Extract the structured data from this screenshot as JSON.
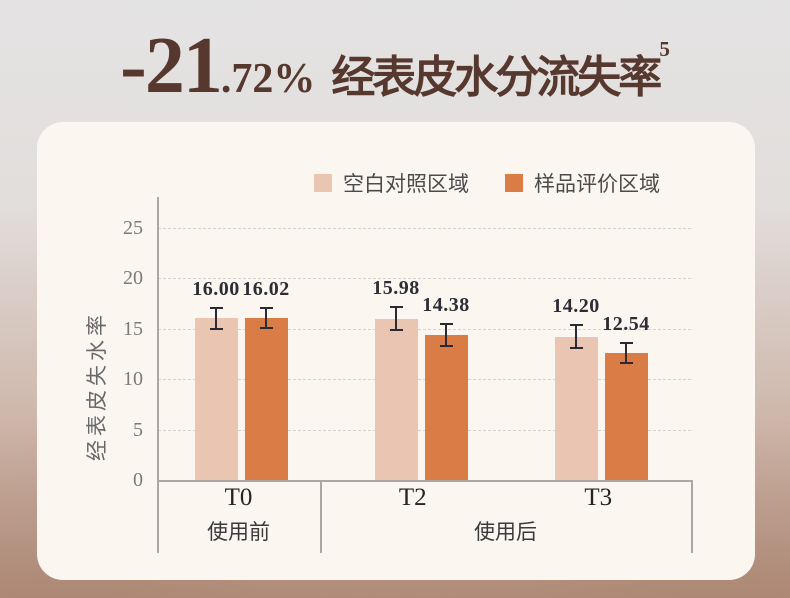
{
  "title": {
    "big": "-21",
    "small": ".72%",
    "text": "经表皮水分流失率",
    "superscript": "5"
  },
  "legend": [
    {
      "label": "空白对照区域",
      "color": "#eac5b2"
    },
    {
      "label": "样品评价区域",
      "color": "#d97c46"
    }
  ],
  "chart_data": {
    "type": "bar",
    "title": "-21.72% 经表皮水分流失率",
    "ylabel": "经表皮失水率",
    "xlabel": "",
    "categories": [
      "T0",
      "T2",
      "T3"
    ],
    "series": [
      {
        "name": "空白对照区域",
        "color": "#eac5b2",
        "values": [
          16.0,
          15.98,
          14.2
        ],
        "value_labels": [
          "16.00",
          "15.98",
          "14.20"
        ],
        "errors": [
          1.0,
          1.1,
          1.15
        ]
      },
      {
        "name": "样品评价区域",
        "color": "#d97c46",
        "values": [
          16.02,
          14.38,
          12.54
        ],
        "value_labels": [
          "16.02",
          "14.38",
          "12.54"
        ],
        "errors": [
          1.0,
          1.1,
          1.0
        ]
      }
    ],
    "yticks": [
      0,
      5,
      10,
      15,
      20,
      25
    ],
    "ylim": [
      0,
      28
    ],
    "grid": "horizontal-dashed",
    "legend_position": "top-right",
    "x_groups": [
      {
        "label": "使用前",
        "span": [
          "T0"
        ]
      },
      {
        "label": "使用后",
        "span": [
          "T2",
          "T3"
        ]
      }
    ]
  },
  "colors": {
    "title_text": "#57382f",
    "card_bg": "#fcf6f1",
    "bar_control": "#eac5b2",
    "bar_sample": "#d97c46",
    "error_bar": "#2b2933",
    "axis_line": "#aba7a4",
    "gridline": "#d8d3ce",
    "tick_text": "#7a7a7a",
    "bg_top": "#e4e3e3",
    "bg_bottom": "#b5927f"
  }
}
